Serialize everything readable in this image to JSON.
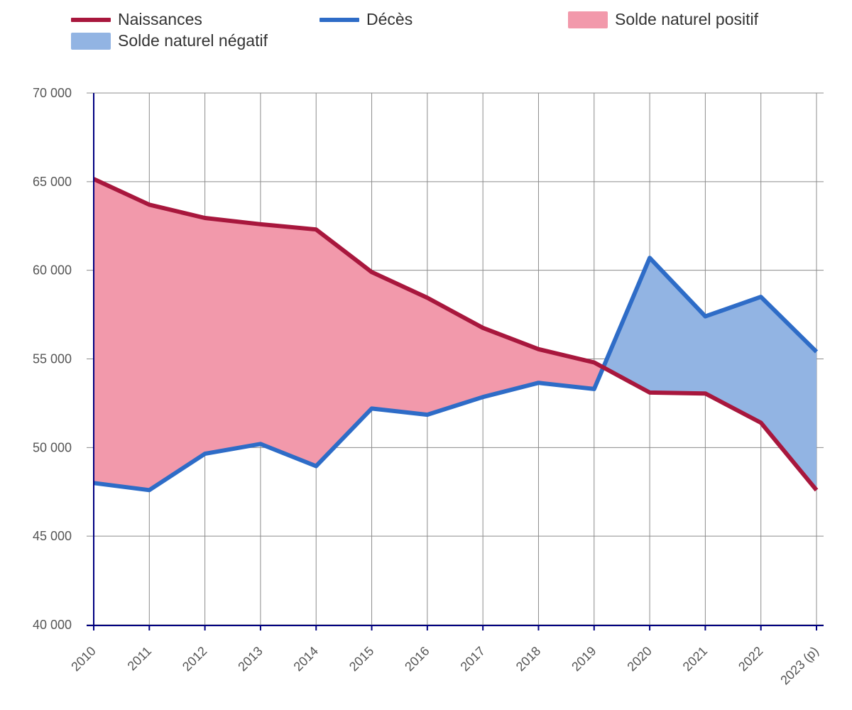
{
  "legend": {
    "naissances": "Naissances",
    "deces": "Décès",
    "positif": "Solde naturel positif",
    "negatif": "Solde naturel négatif"
  },
  "colors": {
    "naissances": "#A8173D",
    "deces": "#2E6CC7",
    "positif_fill": "#F299AB",
    "negatif_fill": "#92B4E3",
    "grid": "#8C8C8C",
    "axis": "#000080"
  },
  "chart_data": {
    "type": "line",
    "categories": [
      "2010",
      "2011",
      "2012",
      "2013",
      "2014",
      "2015",
      "2016",
      "2017",
      "2018",
      "2019",
      "2020",
      "2021",
      "2022",
      "2023 (p)"
    ],
    "series": [
      {
        "name": "Naissances",
        "values": [
          65150,
          63700,
          62950,
          62600,
          62300,
          59900,
          58450,
          56750,
          55550,
          54800,
          53100,
          53050,
          51400,
          47600
        ]
      },
      {
        "name": "Décès",
        "values": [
          48000,
          47600,
          49650,
          50200,
          48950,
          52200,
          51850,
          52850,
          53650,
          53300,
          60700,
          57400,
          58500,
          55400
        ]
      }
    ],
    "areas": [
      "Solde naturel positif",
      "Solde naturel négatif"
    ],
    "ylim": [
      40000,
      70000
    ],
    "yticks": [
      "40 000",
      "45 000",
      "50 000",
      "55 000",
      "60 000",
      "65 000",
      "70 000"
    ],
    "grid": true,
    "legend_position": "top"
  }
}
